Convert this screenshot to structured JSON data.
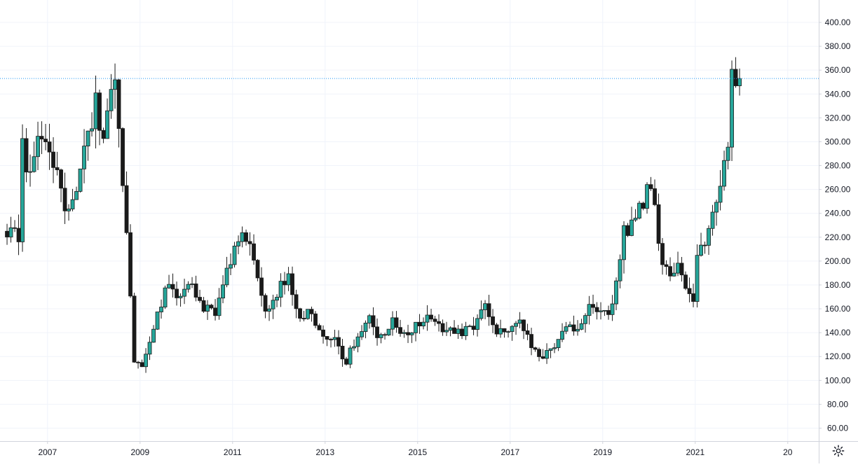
{
  "chart_data": {
    "type": "candlestick",
    "interval": "monthly",
    "ylim": [
      50,
      410
    ],
    "y_ticks": [
      "60.00",
      "80.00",
      "100.00",
      "120.00",
      "140.00",
      "160.00",
      "180.00",
      "200.00",
      "220.00",
      "240.00",
      "260.00",
      "280.00",
      "300.00",
      "320.00",
      "340.00",
      "360.00",
      "380.00",
      "400.00"
    ],
    "x_ticks": [
      "2007",
      "2009",
      "2011",
      "2013",
      "2015",
      "2017",
      "2019",
      "2021",
      "20"
    ],
    "grid": true,
    "colors": {
      "up": "#26a69a",
      "down": "#1a1a1a",
      "wick": "#1a1a1a",
      "price_line": "#2196f3",
      "grid": "#f0f3fa",
      "axis_text": "#131722",
      "border": "#d1d4dc"
    },
    "current_price": 353,
    "anchors": [
      [
        "2006-02",
        225
      ],
      [
        "2006-05",
        222
      ],
      [
        "2006-06",
        300
      ],
      [
        "2006-07",
        270
      ],
      [
        "2006-09",
        290
      ],
      [
        "2006-11",
        305
      ],
      [
        "2007-01",
        295
      ],
      [
        "2007-04",
        258
      ],
      [
        "2007-06",
        240
      ],
      [
        "2007-08",
        265
      ],
      [
        "2007-11",
        300
      ],
      [
        "2008-01",
        340
      ],
      [
        "2008-03",
        295
      ],
      [
        "2008-06",
        360
      ],
      [
        "2008-08",
        270
      ],
      [
        "2008-10",
        170
      ],
      [
        "2008-11",
        115
      ],
      [
        "2009-01",
        110
      ],
      [
        "2009-04",
        140
      ],
      [
        "2009-07",
        180
      ],
      [
        "2009-10",
        170
      ],
      [
        "2010-02",
        180
      ],
      [
        "2010-05",
        160
      ],
      [
        "2010-08",
        155
      ],
      [
        "2010-11",
        190
      ],
      [
        "2011-03",
        230
      ],
      [
        "2011-06",
        200
      ],
      [
        "2011-09",
        160
      ],
      [
        "2011-12",
        175
      ],
      [
        "2012-03",
        185
      ],
      [
        "2012-06",
        155
      ],
      [
        "2012-09",
        155
      ],
      [
        "2012-12",
        140
      ],
      [
        "2013-03",
        135
      ],
      [
        "2013-06",
        115
      ],
      [
        "2013-09",
        140
      ],
      [
        "2013-12",
        150
      ],
      [
        "2014-03",
        135
      ],
      [
        "2014-06",
        150
      ],
      [
        "2014-09",
        140
      ],
      [
        "2014-12",
        145
      ],
      [
        "2015-03",
        155
      ],
      [
        "2015-06",
        145
      ],
      [
        "2015-09",
        145
      ],
      [
        "2015-12",
        140
      ],
      [
        "2016-03",
        145
      ],
      [
        "2016-06",
        165
      ],
      [
        "2016-09",
        140
      ],
      [
        "2016-12",
        145
      ],
      [
        "2017-03",
        155
      ],
      [
        "2017-06",
        125
      ],
      [
        "2017-09",
        120
      ],
      [
        "2017-12",
        130
      ],
      [
        "2018-03",
        145
      ],
      [
        "2018-06",
        145
      ],
      [
        "2018-09",
        160
      ],
      [
        "2018-12",
        160
      ],
      [
        "2019-03",
        160
      ],
      [
        "2019-06",
        225
      ],
      [
        "2019-09",
        235
      ],
      [
        "2019-12",
        260
      ],
      [
        "2020-02",
        255
      ],
      [
        "2020-03",
        210
      ],
      [
        "2020-05",
        190
      ],
      [
        "2020-08",
        195
      ],
      [
        "2020-10",
        175
      ],
      [
        "2020-12",
        165
      ],
      [
        "2021-01",
        210
      ],
      [
        "2021-03",
        220
      ],
      [
        "2021-05",
        235
      ],
      [
        "2021-07",
        270
      ],
      [
        "2021-09",
        295
      ],
      [
        "2021-10",
        360
      ],
      [
        "2021-12",
        353
      ]
    ]
  },
  "ui": {
    "settings_icon": "gear-icon"
  }
}
